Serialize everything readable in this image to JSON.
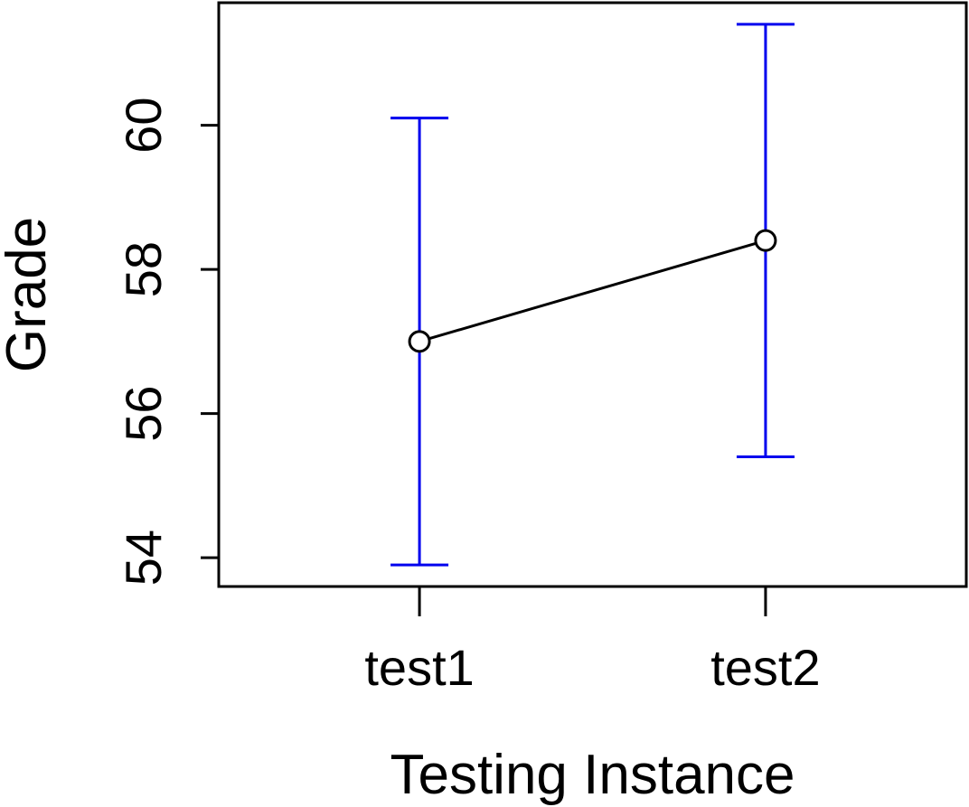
{
  "chart_data": {
    "type": "line",
    "title": "",
    "xlabel": "Testing Instance",
    "ylabel": "Grade",
    "categories": [
      "test1",
      "test2"
    ],
    "series": [
      {
        "values": [
          57.0,
          58.4
        ],
        "error_low": [
          53.9,
          55.4
        ],
        "error_high": [
          60.1,
          61.4
        ]
      }
    ],
    "yticks": [
      54,
      56,
      58,
      60
    ],
    "ytick_labels": [
      "54",
      "56",
      "58",
      "60"
    ],
    "xlim": [
      0.42,
      2.58
    ],
    "ylim": [
      53.6,
      61.7
    ],
    "grid": false,
    "legend": "none",
    "colors": {
      "line": "#000000",
      "marker": "#000000",
      "error_bar": "#0000ee",
      "frame": "#000000"
    }
  }
}
